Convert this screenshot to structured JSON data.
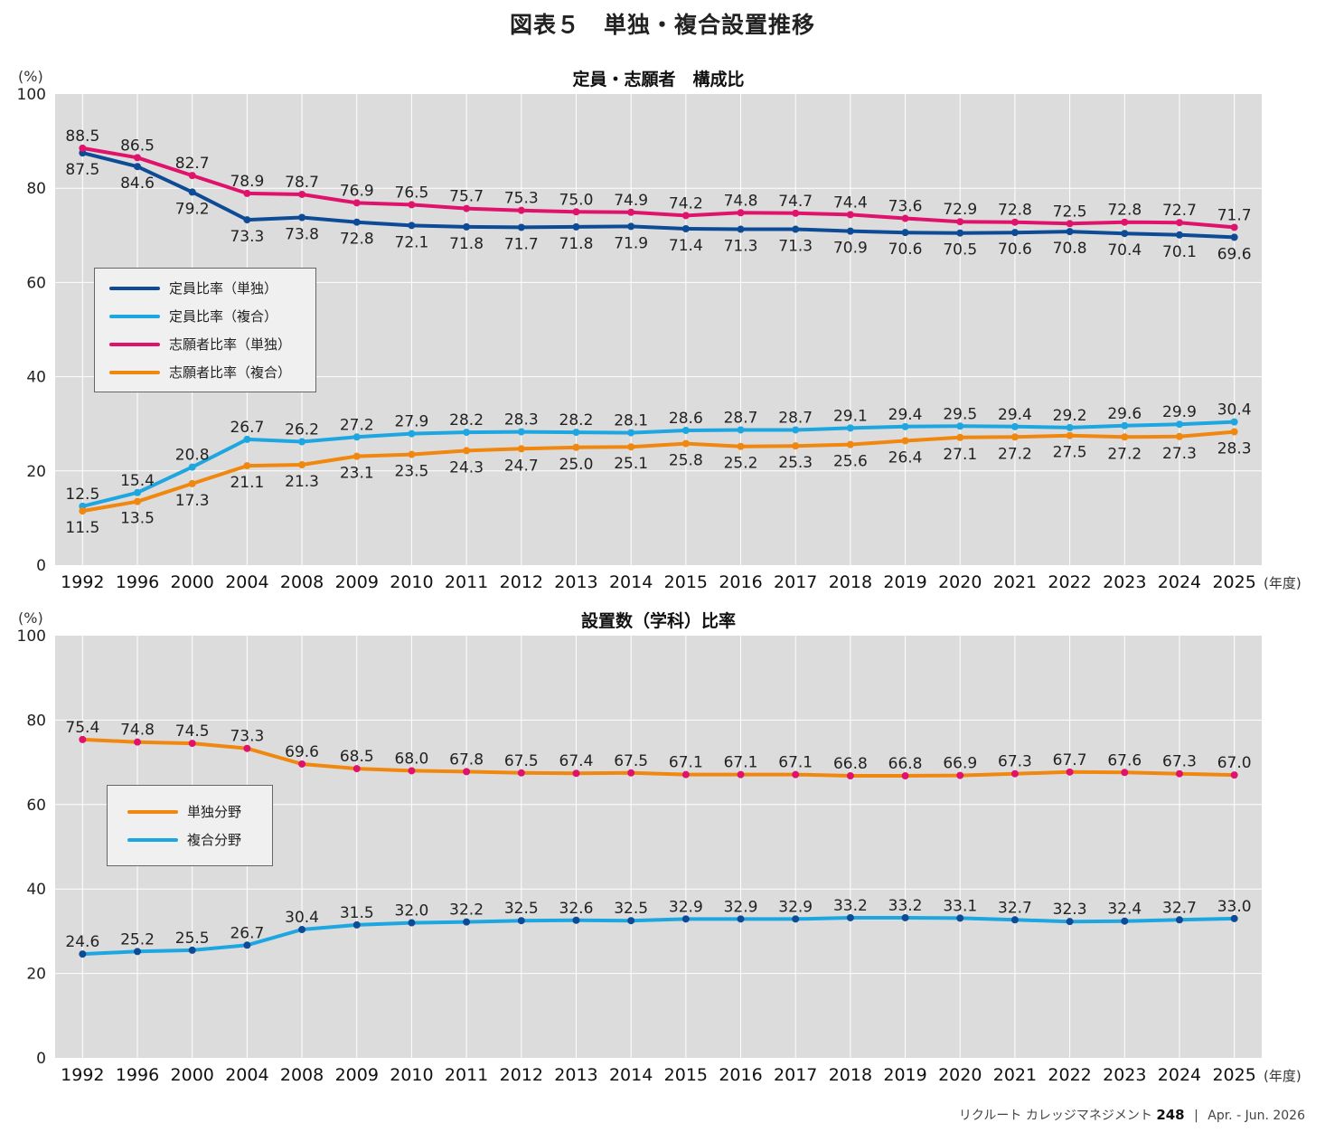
{
  "page_title": "図表５　単独・複合設置推移",
  "footer": {
    "publication": "リクルート カレッジマネジメント",
    "issue": "248",
    "separator": "|",
    "date": "Apr. - Jun. 2026"
  },
  "chart_data": [
    {
      "type": "line",
      "title": "定員・志願者　構成比",
      "ylabel": "(%)",
      "xlabel": "(年度)",
      "ylim": [
        0,
        100
      ],
      "yticks": [
        0,
        20,
        40,
        60,
        80,
        100
      ],
      "grid": true,
      "legend_position": "left-middle",
      "categories": [
        "1992",
        "1996",
        "2000",
        "2004",
        "2008",
        "2009",
        "2010",
        "2011",
        "2012",
        "2013",
        "2014",
        "2015",
        "2016",
        "2017",
        "2018",
        "2019",
        "2020",
        "2021",
        "2022",
        "2023",
        "2024",
        "2025"
      ],
      "series": [
        {
          "name": "定員比率（単独）",
          "color": "#0d4b96",
          "marker": "#0d4b96",
          "label_pos": "below",
          "values": [
            87.5,
            84.6,
            79.2,
            73.3,
            73.8,
            72.8,
            72.1,
            71.8,
            71.7,
            71.8,
            71.9,
            71.4,
            71.3,
            71.3,
            70.9,
            70.6,
            70.5,
            70.6,
            70.8,
            70.4,
            70.1,
            69.6
          ]
        },
        {
          "name": "定員比率（複合）",
          "color": "#1ea6e0",
          "marker": "#1ea6e0",
          "label_pos": "above",
          "values": [
            12.5,
            15.4,
            20.8,
            26.7,
            26.2,
            27.2,
            27.9,
            28.2,
            28.3,
            28.2,
            28.1,
            28.6,
            28.7,
            28.7,
            29.1,
            29.4,
            29.5,
            29.4,
            29.2,
            29.6,
            29.9,
            30.4
          ]
        },
        {
          "name": "志願者比率（単独）",
          "color": "#e0136c",
          "marker": "#e0136c",
          "label_pos": "above",
          "values": [
            88.5,
            86.5,
            82.7,
            78.9,
            78.7,
            76.9,
            76.5,
            75.7,
            75.3,
            75.0,
            74.9,
            74.2,
            74.8,
            74.7,
            74.4,
            73.6,
            72.9,
            72.8,
            72.5,
            72.8,
            72.7,
            71.7
          ]
        },
        {
          "name": "志願者比率（複合）",
          "color": "#f0870f",
          "marker": "#f0870f",
          "label_pos": "below",
          "values": [
            11.5,
            13.5,
            17.3,
            21.1,
            21.3,
            23.1,
            23.5,
            24.3,
            24.7,
            25.0,
            25.1,
            25.8,
            25.2,
            25.3,
            25.6,
            26.4,
            27.1,
            27.2,
            27.5,
            27.2,
            27.3,
            28.3
          ]
        }
      ]
    },
    {
      "type": "line",
      "title": "設置数（学科）比率",
      "ylabel": "(%)",
      "xlabel": "(年度)",
      "ylim": [
        0,
        100
      ],
      "yticks": [
        0,
        20,
        40,
        60,
        80,
        100
      ],
      "grid": true,
      "legend_position": "left-middle",
      "categories": [
        "1992",
        "1996",
        "2000",
        "2004",
        "2008",
        "2009",
        "2010",
        "2011",
        "2012",
        "2013",
        "2014",
        "2015",
        "2016",
        "2017",
        "2018",
        "2019",
        "2020",
        "2021",
        "2022",
        "2023",
        "2024",
        "2025"
      ],
      "series": [
        {
          "name": "単独分野",
          "color": "#f0870f",
          "marker": "#e0136c",
          "label_pos": "above",
          "values": [
            75.4,
            74.8,
            74.5,
            73.3,
            69.6,
            68.5,
            68.0,
            67.8,
            67.5,
            67.4,
            67.5,
            67.1,
            67.1,
            67.1,
            66.8,
            66.8,
            66.9,
            67.3,
            67.7,
            67.6,
            67.3,
            67.0
          ]
        },
        {
          "name": "複合分野",
          "color": "#1ea6e0",
          "marker": "#0d4b96",
          "label_pos": "above",
          "values": [
            24.6,
            25.2,
            25.5,
            26.7,
            30.4,
            31.5,
            32.0,
            32.2,
            32.5,
            32.6,
            32.5,
            32.9,
            32.9,
            32.9,
            33.2,
            33.2,
            33.1,
            32.7,
            32.3,
            32.4,
            32.7,
            33.0
          ]
        }
      ]
    }
  ]
}
